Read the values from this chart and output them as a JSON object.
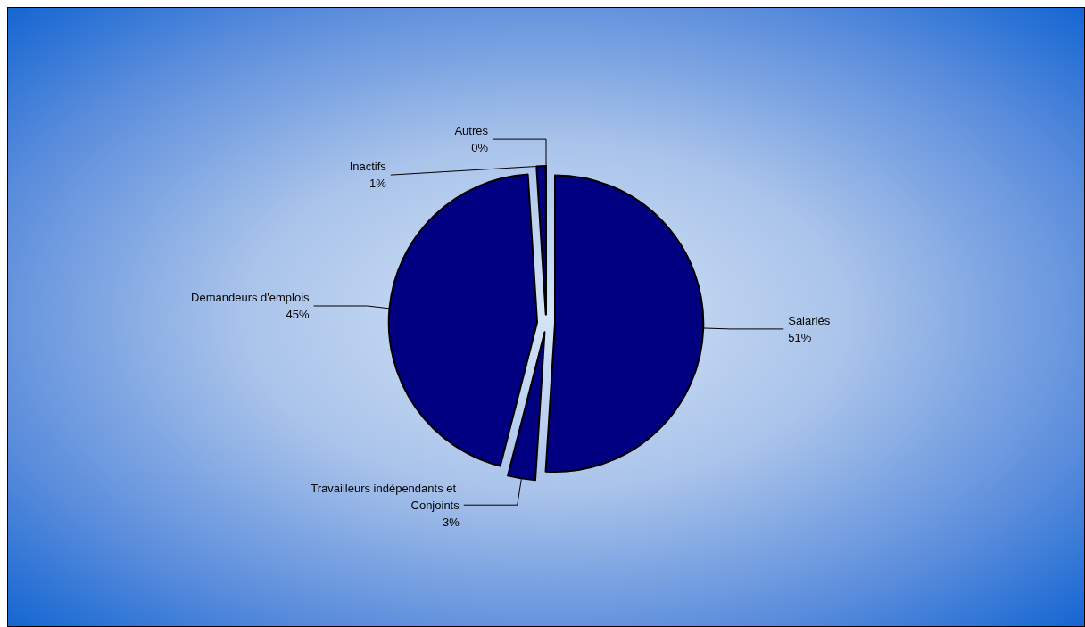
{
  "chart_data": {
    "type": "pie",
    "categories": [
      "Salariés",
      "Travailleurs indépendants et Conjoints",
      "Demandeurs d'emplois",
      "Inactifs",
      "Autres"
    ],
    "values": [
      51,
      3,
      45,
      1,
      0
    ],
    "colors": [
      "#000080",
      "#000080",
      "#000080",
      "#000080",
      "#000080"
    ],
    "value_labels": [
      "51%",
      "3%",
      "45%",
      "1%",
      "0%"
    ],
    "legend": false
  }
}
